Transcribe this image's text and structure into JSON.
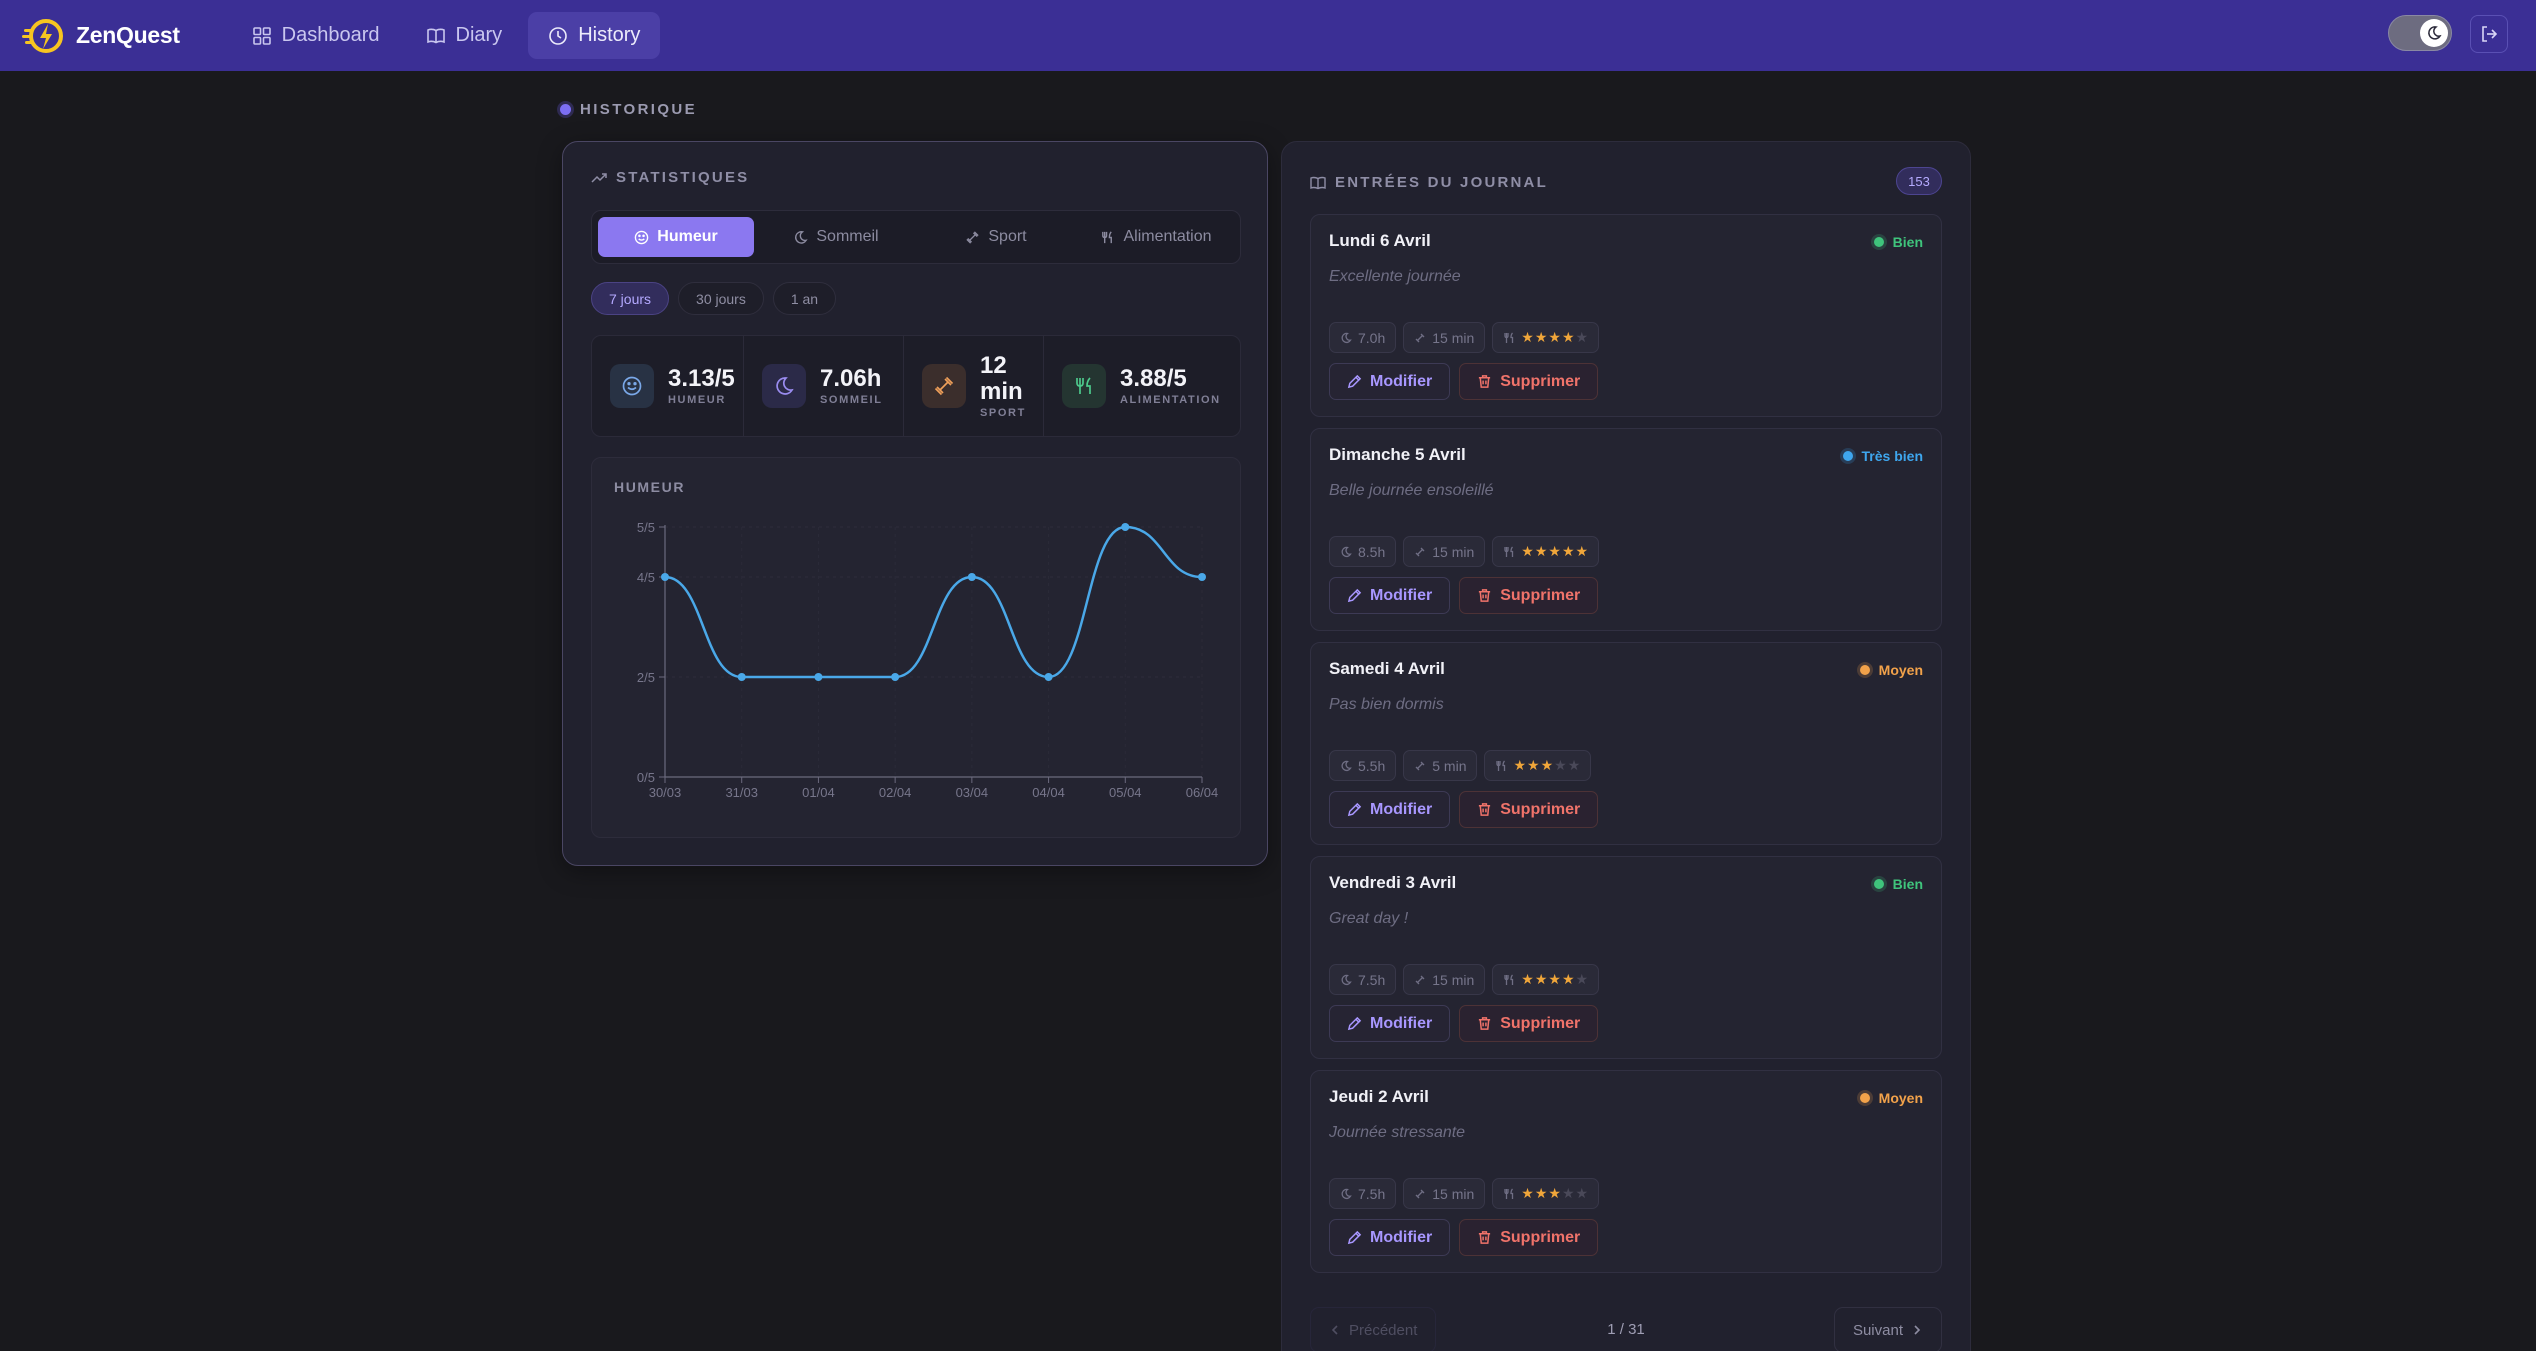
{
  "app": {
    "name": "ZenQuest"
  },
  "nav": {
    "items": [
      {
        "label": "Dashboard",
        "icon": "grid-icon"
      },
      {
        "label": "Diary",
        "icon": "book-icon"
      },
      {
        "label": "History",
        "icon": "clock-icon",
        "active": true
      }
    ]
  },
  "section": {
    "label": "HISTORIQUE"
  },
  "stats": {
    "title": "STATISTIQUES",
    "tabs": [
      {
        "label": "Humeur",
        "icon": "smile-icon",
        "active": true
      },
      {
        "label": "Sommeil",
        "icon": "moon-icon"
      },
      {
        "label": "Sport",
        "icon": "dumbbell-icon"
      },
      {
        "label": "Alimentation",
        "icon": "utensils-icon"
      }
    ],
    "periods": [
      {
        "label": "7 jours",
        "active": true
      },
      {
        "label": "30 jours"
      },
      {
        "label": "1 an"
      }
    ],
    "metrics": [
      {
        "value": "3.13/5",
        "label": "HUMEUR",
        "icon": "smile-icon",
        "color": "#7aa8e8"
      },
      {
        "value": "7.06h",
        "label": "SOMMEIL",
        "icon": "moon-icon",
        "color": "#9a8cf0"
      },
      {
        "value": "12 min",
        "label": "SPORT",
        "icon": "dumbbell-icon",
        "color": "#f0a05a"
      },
      {
        "value": "3.88/5",
        "label": "ALIMENTATION",
        "icon": "utensils-icon",
        "color": "#4cc98b"
      }
    ],
    "chart_title": "HUMEUR"
  },
  "chart_data": {
    "type": "line",
    "title": "HUMEUR",
    "x": [
      "30/03",
      "31/03",
      "01/04",
      "02/04",
      "03/04",
      "04/04",
      "05/04",
      "06/04"
    ],
    "y_ticks": [
      "0/5",
      "2/5",
      "4/5",
      "5/5"
    ],
    "ylim": [
      0,
      5
    ],
    "series": [
      {
        "values": [
          4,
          2,
          2,
          2,
          4,
          2,
          5,
          4
        ],
        "color": "#4aa8e8"
      }
    ],
    "grid": true
  },
  "journal": {
    "title": "ENTRÉES DU JOURNAL",
    "count": "153",
    "edit_label": "Modifier",
    "delete_label": "Supprimer",
    "entries": [
      {
        "date": "Lundi 6 Avril",
        "mood": "Bien",
        "mood_color": "#3fc47c",
        "note": "Excellente journée",
        "sleep": "7.0h",
        "sport": "15 min",
        "food_stars": 4
      },
      {
        "date": "Dimanche 5 Avril",
        "mood": "Très bien",
        "mood_color": "#3ea6ee",
        "note": "Belle journée ensoleillé",
        "sleep": "8.5h",
        "sport": "15 min",
        "food_stars": 5
      },
      {
        "date": "Samedi 4 Avril",
        "mood": "Moyen",
        "mood_color": "#f2a24a",
        "note": "Pas bien dormis",
        "sleep": "5.5h",
        "sport": "5 min",
        "food_stars": 3
      },
      {
        "date": "Vendredi 3 Avril",
        "mood": "Bien",
        "mood_color": "#3fc47c",
        "note": "Great day !",
        "sleep": "7.5h",
        "sport": "15 min",
        "food_stars": 4
      },
      {
        "date": "Jeudi 2 Avril",
        "mood": "Moyen",
        "mood_color": "#f2a24a",
        "note": "Journée stressante",
        "sleep": "7.5h",
        "sport": "15 min",
        "food_stars": 3
      }
    ],
    "pager": {
      "prev": "Précédent",
      "next": "Suivant",
      "info": "1 / 31"
    }
  }
}
